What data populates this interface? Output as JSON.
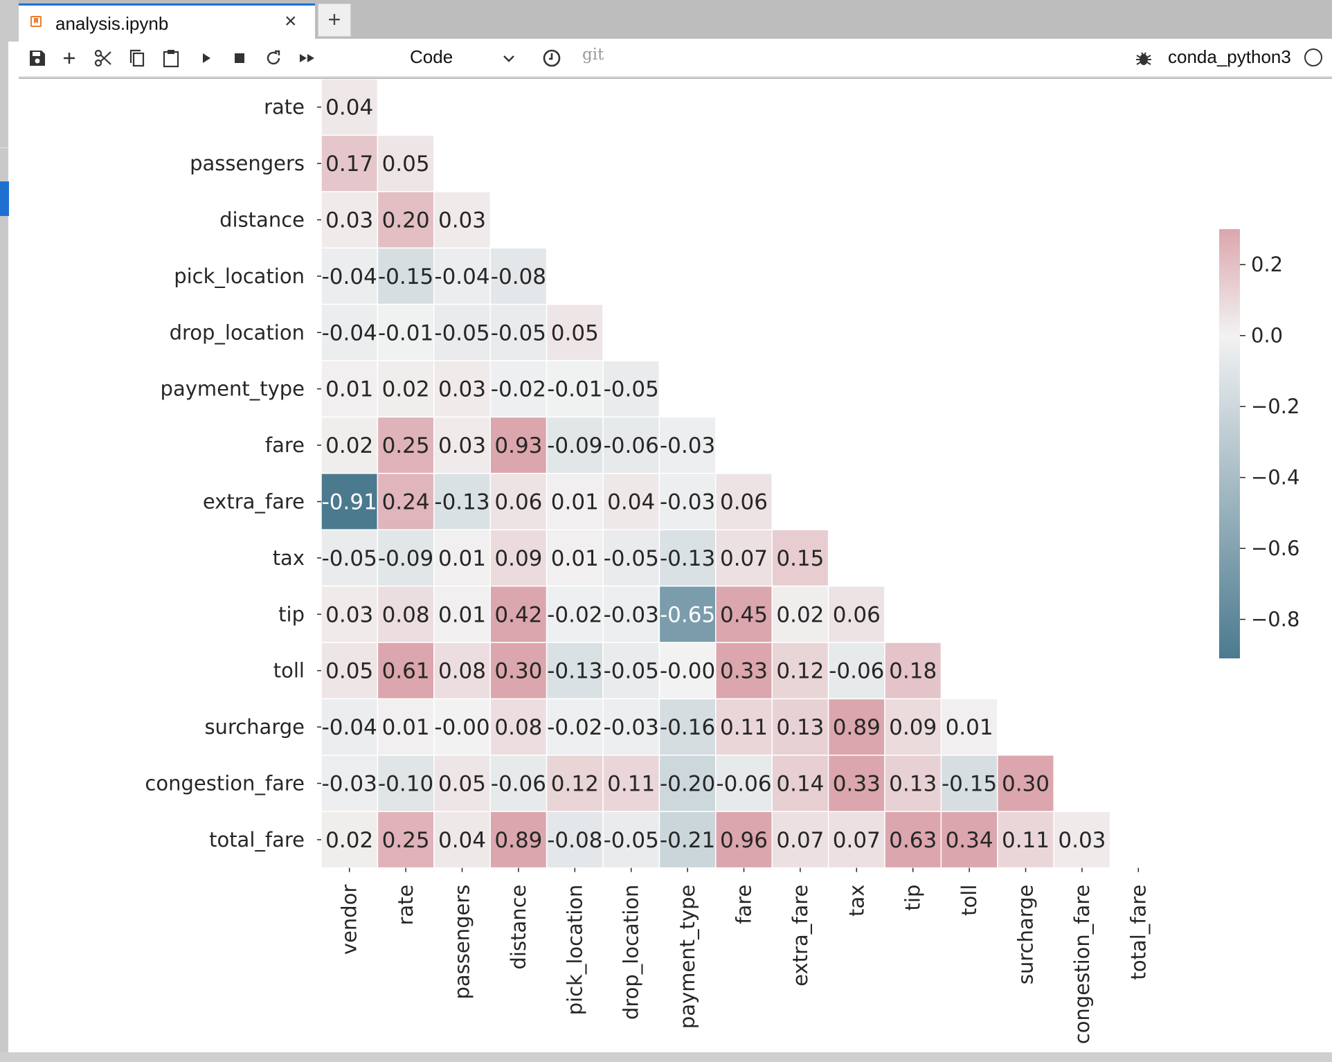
{
  "tab": {
    "title": "analysis.ipynb",
    "close": "×",
    "new_tab": "+"
  },
  "toolbar": {
    "cell_type": "Code",
    "git_label": "git",
    "kernel_name": "conda_python3",
    "icons": [
      "save-icon",
      "add-cell-icon",
      "cut-icon",
      "copy-icon",
      "paste-icon",
      "run-icon",
      "stop-icon",
      "restart-icon",
      "run-all-icon",
      "history-icon",
      "debug-icon"
    ]
  },
  "chart_data": {
    "type": "heatmap",
    "title": "",
    "row_labels": [
      "rate",
      "passengers",
      "distance",
      "pick_location",
      "drop_location",
      "payment_type",
      "fare",
      "extra_fare",
      "tax",
      "tip",
      "toll",
      "surcharge",
      "congestion_fare",
      "total_fare"
    ],
    "col_labels": [
      "vendor",
      "rate",
      "passengers",
      "distance",
      "pick_location",
      "drop_location",
      "payment_type",
      "fare",
      "extra_fare",
      "tax",
      "tip",
      "toll",
      "surcharge",
      "congestion_fare",
      "total_fare"
    ],
    "values": [
      [
        0.04
      ],
      [
        0.17,
        0.05
      ],
      [
        0.03,
        0.2,
        0.03
      ],
      [
        -0.04,
        -0.15,
        -0.04,
        -0.08
      ],
      [
        -0.04,
        -0.01,
        -0.05,
        -0.05,
        0.05
      ],
      [
        0.01,
        0.02,
        0.03,
        -0.02,
        -0.01,
        -0.05
      ],
      [
        0.02,
        0.25,
        0.03,
        0.93,
        -0.09,
        -0.06,
        -0.03
      ],
      [
        -0.91,
        0.24,
        -0.13,
        0.06,
        0.01,
        0.04,
        -0.03,
        0.06
      ],
      [
        -0.05,
        -0.09,
        0.01,
        0.09,
        0.01,
        -0.05,
        -0.13,
        0.07,
        0.15
      ],
      [
        0.03,
        0.08,
        0.01,
        0.42,
        -0.02,
        -0.03,
        -0.65,
        0.45,
        0.02,
        0.06
      ],
      [
        0.05,
        0.61,
        0.08,
        0.3,
        -0.13,
        -0.05,
        -0.0,
        0.33,
        0.12,
        -0.06,
        0.18
      ],
      [
        -0.04,
        0.01,
        -0.0,
        0.08,
        -0.02,
        -0.03,
        -0.16,
        0.11,
        0.13,
        0.89,
        0.09,
        0.01
      ],
      [
        -0.03,
        -0.1,
        0.05,
        -0.06,
        0.12,
        0.11,
        -0.2,
        -0.06,
        0.14,
        0.33,
        0.13,
        -0.15,
        0.3
      ],
      [
        0.02,
        0.25,
        0.04,
        0.89,
        -0.08,
        -0.05,
        -0.21,
        0.96,
        0.07,
        0.07,
        0.63,
        0.34,
        0.11,
        0.03
      ]
    ],
    "labels": [
      [
        "0.04"
      ],
      [
        "0.17",
        "0.05"
      ],
      [
        "0.03",
        "0.20",
        "0.03"
      ],
      [
        "-0.04",
        "-0.15",
        "-0.04",
        "-0.08"
      ],
      [
        "-0.04",
        "-0.01",
        "-0.05",
        "-0.05",
        "0.05"
      ],
      [
        "0.01",
        "0.02",
        "0.03",
        "-0.02",
        "-0.01",
        "-0.05"
      ],
      [
        "0.02",
        "0.25",
        "0.03",
        "0.93",
        "-0.09",
        "-0.06",
        "-0.03"
      ],
      [
        "-0.91",
        "0.24",
        "-0.13",
        "0.06",
        "0.01",
        "0.04",
        "-0.03",
        "0.06"
      ],
      [
        "-0.05",
        "-0.09",
        "0.01",
        "0.09",
        "0.01",
        "-0.05",
        "-0.13",
        "0.07",
        "0.15"
      ],
      [
        "0.03",
        "0.08",
        "0.01",
        "0.42",
        "-0.02",
        "-0.03",
        "-0.65",
        "0.45",
        "0.02",
        "0.06"
      ],
      [
        "0.05",
        "0.61",
        "0.08",
        "0.30",
        "-0.13",
        "-0.05",
        "-0.00",
        "0.33",
        "0.12",
        "-0.06",
        "0.18"
      ],
      [
        "-0.04",
        "0.01",
        "-0.00",
        "0.08",
        "-0.02",
        "-0.03",
        "-0.16",
        "0.11",
        "0.13",
        "0.89",
        "0.09",
        "0.01"
      ],
      [
        "-0.03",
        "-0.10",
        "0.05",
        "-0.06",
        "0.12",
        "0.11",
        "-0.20",
        "-0.06",
        "0.14",
        "0.33",
        "0.13",
        "-0.15",
        "0.30"
      ],
      [
        "0.02",
        "0.25",
        "0.04",
        "0.89",
        "-0.08",
        "-0.05",
        "-0.21",
        "0.96",
        "0.07",
        "0.07",
        "0.63",
        "0.34",
        "0.11",
        "0.03"
      ]
    ],
    "color_range": [
      -0.91,
      0.3
    ],
    "colorbar_ticks": [
      {
        "value": 0.2,
        "label": "0.2"
      },
      {
        "value": 0.0,
        "label": "0.0"
      },
      {
        "value": -0.2,
        "label": "−0.2"
      },
      {
        "value": -0.4,
        "label": "−0.4"
      },
      {
        "value": -0.6,
        "label": "−0.6"
      },
      {
        "value": -0.8,
        "label": "−0.8"
      }
    ],
    "colors": {
      "negative": "#4b7a8f",
      "neutral": "#f2f2f2",
      "positive": "#dba6ad"
    },
    "mask": "upper-triangle"
  }
}
